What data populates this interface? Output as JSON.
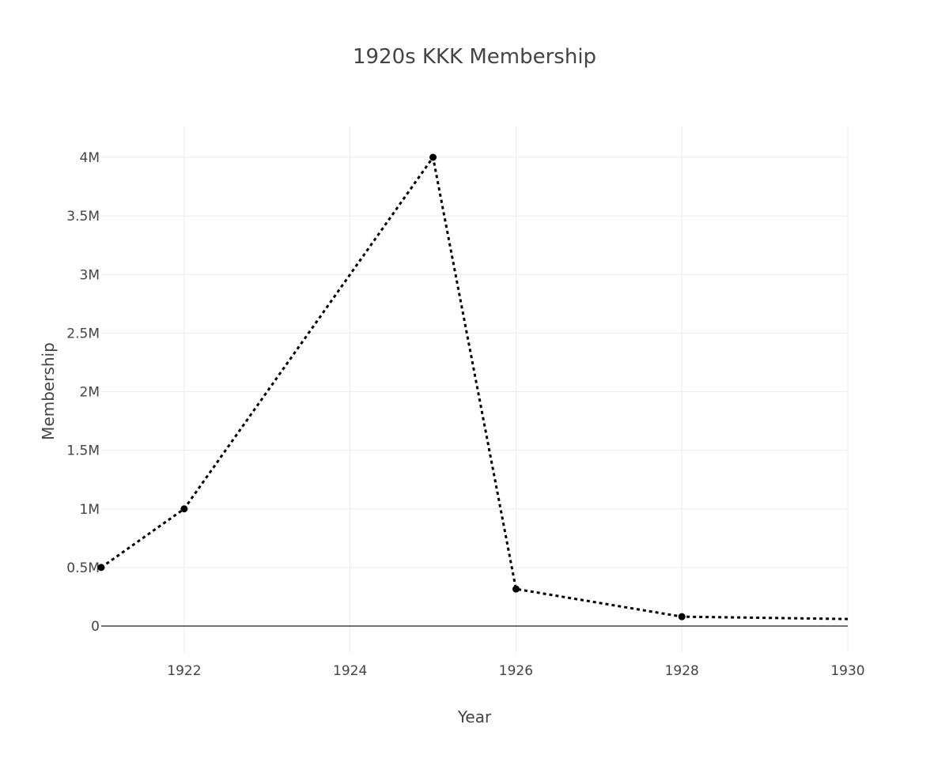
{
  "chart_data": {
    "type": "line",
    "title": "1920s KKK Membership",
    "xlabel": "Year",
    "ylabel": "Membership",
    "xlim": [
      1921,
      1930
    ],
    "ylim": [
      -200000,
      4300000
    ],
    "x_ticks": [
      1922,
      1924,
      1926,
      1928,
      1930
    ],
    "x_tick_labels": [
      "1922",
      "1924",
      "1926",
      "1928",
      "1930"
    ],
    "y_ticks": [
      0,
      500000,
      1000000,
      1500000,
      2000000,
      2500000,
      3000000,
      3500000,
      4000000
    ],
    "y_tick_labels": [
      "0",
      "0.5M",
      "1M",
      "1.5M",
      "2M",
      "2.5M",
      "3M",
      "3.5M",
      "4M"
    ],
    "grid": true,
    "legend": false,
    "line_style": "dotted",
    "line_color": "#000000",
    "series": [
      {
        "x": [
          1921,
          1922,
          1925,
          1926,
          1928,
          1930
        ],
        "y": [
          500000,
          1000000,
          4000000,
          316000,
          80000,
          60000
        ],
        "markers": [
          true,
          true,
          true,
          true,
          true,
          false
        ]
      }
    ]
  }
}
